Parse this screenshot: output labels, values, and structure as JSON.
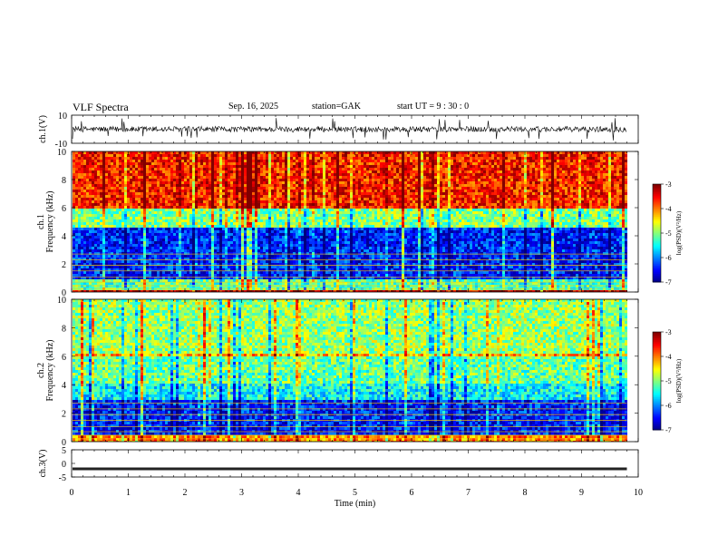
{
  "header": {
    "title": "VLF  Spectra",
    "date": "Sep. 16, 2025",
    "station": "station=GAK",
    "start": "start  UT =   9  : 30 : 0"
  },
  "colorbar": {
    "label": "log(PSD)(V²/Hz)",
    "ticks": [
      "-3",
      "-4",
      "-5",
      "-6",
      "-7"
    ]
  },
  "chart_data": [
    {
      "type": "line",
      "panel": "ch1-waveform",
      "ylabel": "ch.1(V)",
      "ylim": [
        -10,
        10
      ],
      "yticks": [
        "10",
        "-10"
      ],
      "x": [
        0,
        10
      ],
      "baseline": 0,
      "description_values": {
        "typical_amplitude": 2,
        "spike_amplitude": 8
      }
    },
    {
      "type": "heatmap",
      "panel": "ch1-spectrogram",
      "ylabel": "ch.1\nFrequency  (kHz)",
      "ylim": [
        0,
        10
      ],
      "yticks": [
        "0",
        "2",
        "4",
        "6",
        "8",
        "10"
      ],
      "xlim": [
        0,
        10
      ],
      "color_range": [
        -7,
        -3
      ],
      "bands": [
        {
          "from_khz": 0,
          "to_khz": 0.3,
          "level": -3.3
        },
        {
          "from_khz": 0.3,
          "to_khz": 1.0,
          "level": -5.2
        },
        {
          "from_khz": 1.0,
          "to_khz": 4.7,
          "level": -6.4
        },
        {
          "from_khz": 4.7,
          "to_khz": 6.0,
          "level": -5.0
        },
        {
          "from_khz": 6.0,
          "to_khz": 10,
          "level": -3.6
        }
      ]
    },
    {
      "type": "heatmap",
      "panel": "ch2-spectrogram",
      "ylabel": "ch.2\nFrequency  (kHz)",
      "ylim": [
        0,
        10
      ],
      "yticks": [
        "0",
        "2",
        "4",
        "6",
        "8",
        "10"
      ],
      "xlim": [
        0,
        10
      ],
      "color_range": [
        -7,
        -3
      ],
      "bands": [
        {
          "from_khz": 0,
          "to_khz": 0.6,
          "level": -4.0
        },
        {
          "from_khz": 0.6,
          "to_khz": 3.0,
          "level": -6.4
        },
        {
          "from_khz": 3.0,
          "to_khz": 4.2,
          "level": -5.5
        },
        {
          "from_khz": 4.2,
          "to_khz": 6.0,
          "level": -5.1
        },
        {
          "from_khz": 6.0,
          "to_khz": 6.3,
          "level": -4.2
        },
        {
          "from_khz": 6.3,
          "to_khz": 10,
          "level": -4.9
        }
      ]
    },
    {
      "type": "line",
      "panel": "ch3-waveform",
      "ylabel": "ch.3(V)",
      "ylim": [
        -5,
        5
      ],
      "yticks": [
        "5",
        "0",
        "-5"
      ],
      "x": [
        0,
        9.8
      ],
      "baseline": -2
    }
  ],
  "xaxis": {
    "label": "Time  (min)",
    "ticks": [
      "0",
      "1",
      "2",
      "3",
      "4",
      "5",
      "6",
      "7",
      "8",
      "9",
      "10"
    ],
    "xlim": [
      0,
      10
    ]
  }
}
